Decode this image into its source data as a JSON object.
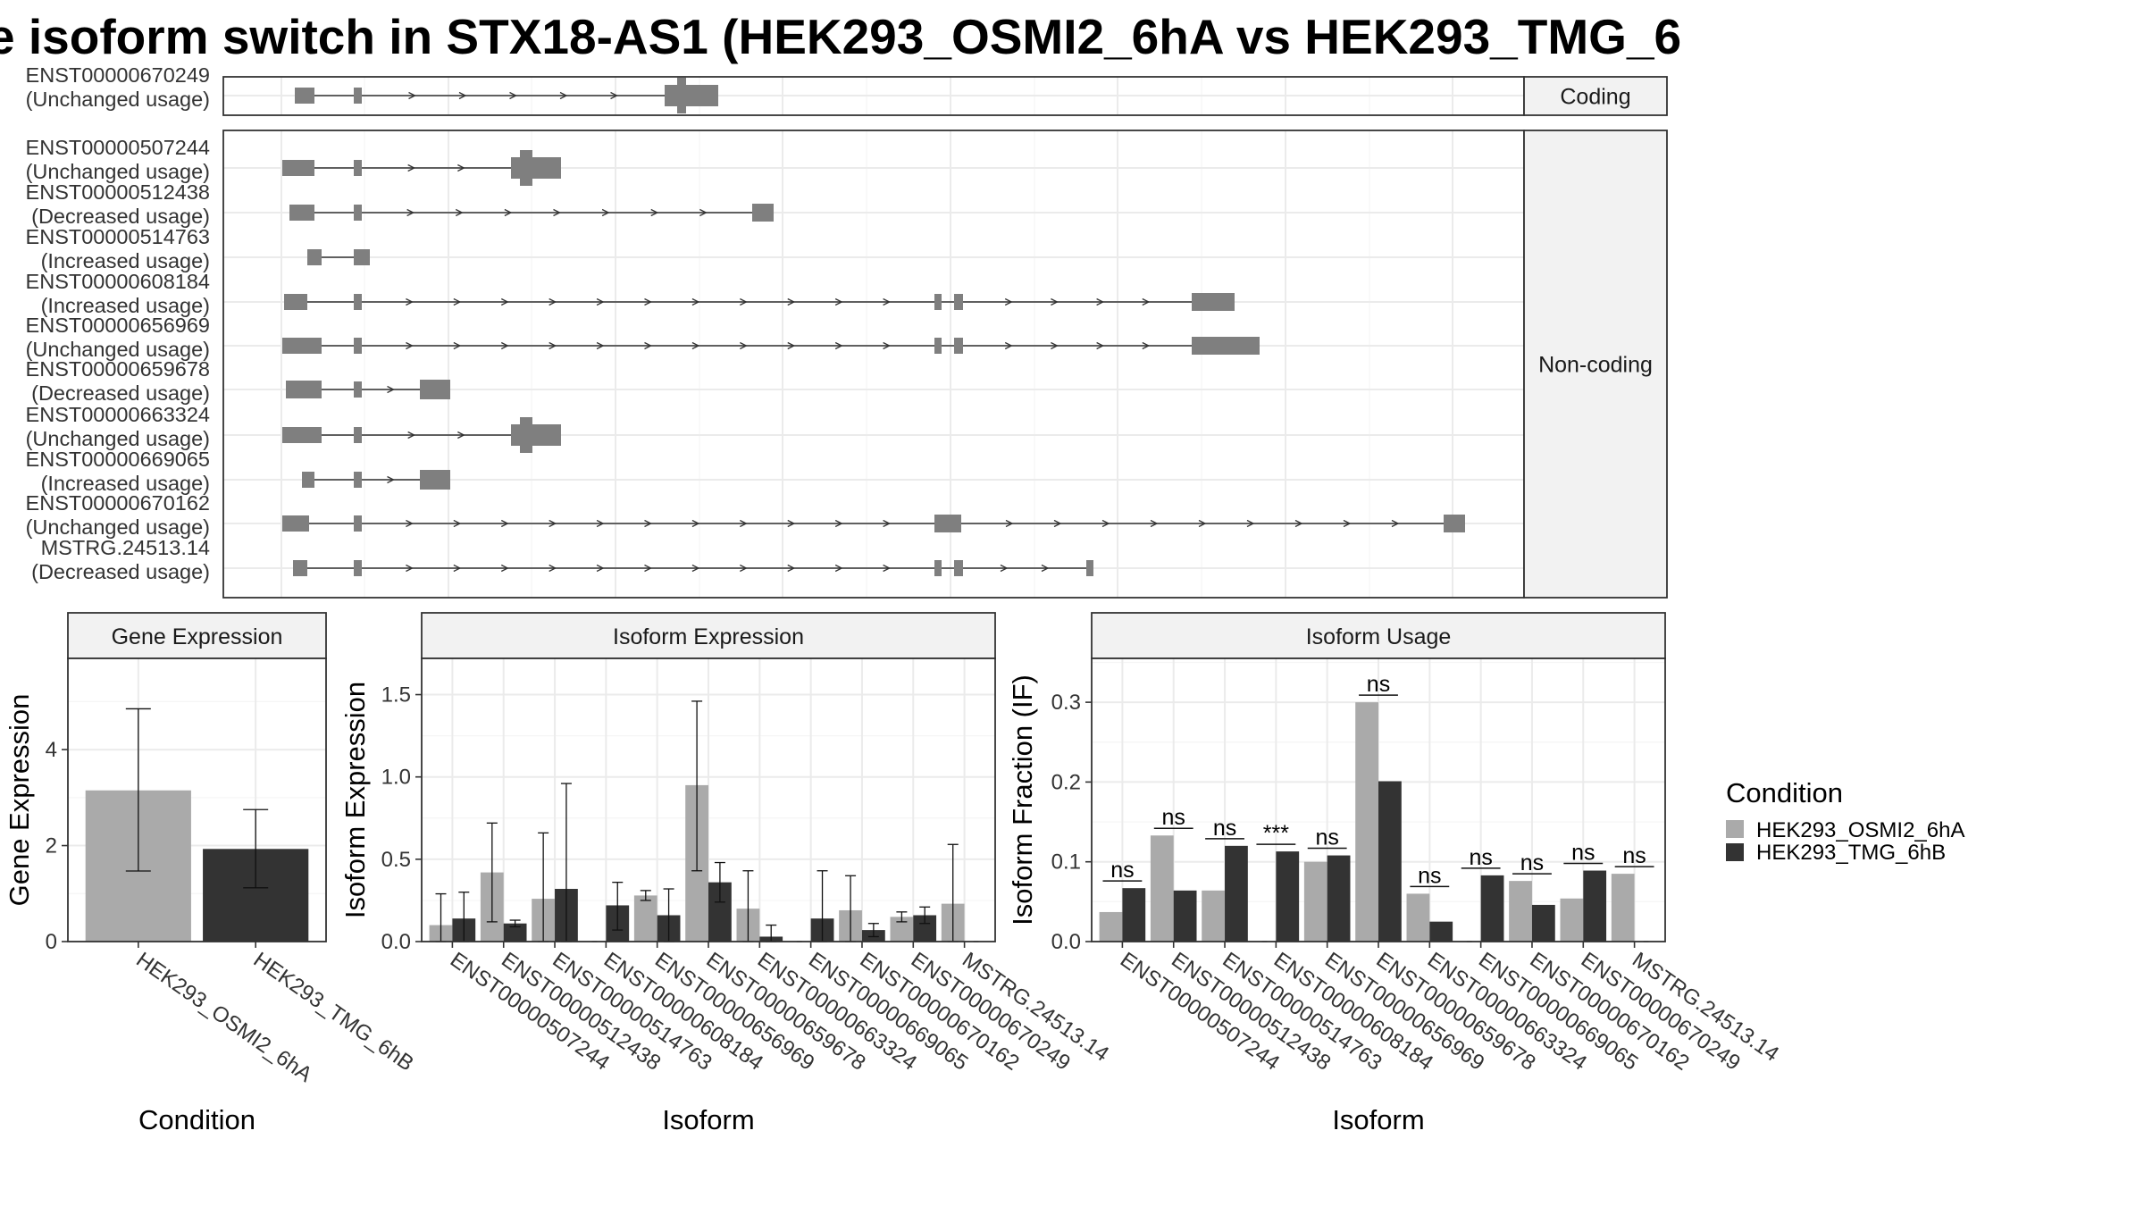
{
  "title": "e isoform switch in STX18-AS1 (HEK293_OSMI2_6hA vs HEK293_TMG_6",
  "colors": {
    "cond_a": "#aaaaaa",
    "cond_b": "#333333",
    "transcript": "#7f7f7f",
    "grid": "#ebebeb",
    "strip": "#f2f2f2"
  },
  "structure": {
    "coding_strip": "Coding",
    "noncoding_strip": "Non-coding",
    "coding": [
      {
        "id": "ENST00000670249",
        "usage": "(Unchanged usage)"
      }
    ],
    "noncoding": [
      {
        "id": "ENST00000507244",
        "usage": "(Unchanged usage)"
      },
      {
        "id": "ENST00000512438",
        "usage": "(Decreased usage)"
      },
      {
        "id": "ENST00000514763",
        "usage": "(Increased usage)"
      },
      {
        "id": "ENST00000608184",
        "usage": "(Increased usage)"
      },
      {
        "id": "ENST00000656969",
        "usage": "(Unchanged usage)"
      },
      {
        "id": "ENST00000659678",
        "usage": "(Decreased usage)"
      },
      {
        "id": "ENST00000663324",
        "usage": "(Unchanged usage)"
      },
      {
        "id": "ENST00000669065",
        "usage": "(Increased usage)"
      },
      {
        "id": "ENST00000670162",
        "usage": "(Unchanged usage)"
      },
      {
        "id": "MSTRG.24513.14",
        "usage": "(Decreased usage)"
      }
    ]
  },
  "chart_data": [
    {
      "type": "bar",
      "panel": "Gene Expression",
      "xlabel": "Condition",
      "ylabel": "Gene Expression",
      "categories": [
        "HEK293_OSMI2_6hA",
        "HEK293_TMG_6hB"
      ],
      "values": [
        3.15,
        1.93
      ],
      "error_low": [
        1.47,
        1.12
      ],
      "error_high": [
        4.85,
        2.75
      ],
      "ylim": [
        0,
        5.9
      ],
      "yticks": [
        0,
        2,
        4
      ]
    },
    {
      "type": "bar",
      "panel": "Isoform Expression",
      "xlabel": "Isoform",
      "ylabel": "Isoform Expression",
      "categories": [
        "ENST00000507244",
        "ENST00000512438",
        "ENST00000514763",
        "ENST00000608184",
        "ENST00000656969",
        "ENST00000659678",
        "ENST00000663324",
        "ENST00000669065",
        "ENST00000670162",
        "ENST00000670249",
        "MSTRG.24513.14"
      ],
      "ylim": [
        0,
        1.72
      ],
      "yticks": [
        0.0,
        0.5,
        1.0,
        1.5
      ],
      "series": [
        {
          "name": "HEK293_OSMI2_6hA",
          "values": [
            0.1,
            0.42,
            0.26,
            0.0,
            0.28,
            0.95,
            0.2,
            0.0,
            0.19,
            0.15,
            0.23
          ],
          "error_low": [
            0.0,
            0.12,
            0.0,
            0.0,
            0.25,
            0.43,
            0.0,
            0.0,
            0.0,
            0.12,
            0.0
          ],
          "error_high": [
            0.29,
            0.72,
            0.66,
            0.0,
            0.31,
            1.46,
            0.43,
            0.0,
            0.4,
            0.18,
            0.59
          ]
        },
        {
          "name": "HEK293_TMG_6hB",
          "values": [
            0.14,
            0.11,
            0.32,
            0.22,
            0.16,
            0.36,
            0.03,
            0.14,
            0.07,
            0.16,
            0.0
          ],
          "error_low": [
            0.0,
            0.09,
            0.0,
            0.07,
            0.0,
            0.24,
            0.0,
            0.0,
            0.03,
            0.11,
            0.0
          ],
          "error_high": [
            0.3,
            0.13,
            0.96,
            0.36,
            0.32,
            0.48,
            0.1,
            0.43,
            0.11,
            0.21,
            0.0
          ]
        }
      ]
    },
    {
      "type": "bar",
      "panel": "Isoform Usage",
      "xlabel": "Isoform",
      "ylabel": "Isoform Fraction (IF)",
      "categories": [
        "ENST00000507244",
        "ENST00000512438",
        "ENST00000514763",
        "ENST00000608184",
        "ENST00000656969",
        "ENST00000659678",
        "ENST00000663324",
        "ENST00000669065",
        "ENST00000670162",
        "ENST00000670249",
        "MSTRG.24513.14"
      ],
      "ylim": [
        0,
        0.355
      ],
      "yticks": [
        0.0,
        0.1,
        0.2,
        0.3
      ],
      "significance": [
        "ns",
        "ns",
        "ns",
        "***",
        "ns",
        "ns",
        "ns",
        "ns",
        "ns",
        "ns",
        "ns"
      ],
      "series": [
        {
          "name": "HEK293_OSMI2_6hA",
          "values": [
            0.037,
            0.133,
            0.064,
            0.0,
            0.1,
            0.3,
            0.06,
            0.0,
            0.076,
            0.054,
            0.085
          ]
        },
        {
          "name": "HEK293_TMG_6hB",
          "values": [
            0.067,
            0.064,
            0.12,
            0.113,
            0.108,
            0.201,
            0.025,
            0.083,
            0.046,
            0.089,
            0.0
          ]
        }
      ]
    }
  ],
  "legend": {
    "title": "Condition",
    "items": [
      "HEK293_OSMI2_6hA",
      "HEK293_TMG_6hB"
    ]
  }
}
